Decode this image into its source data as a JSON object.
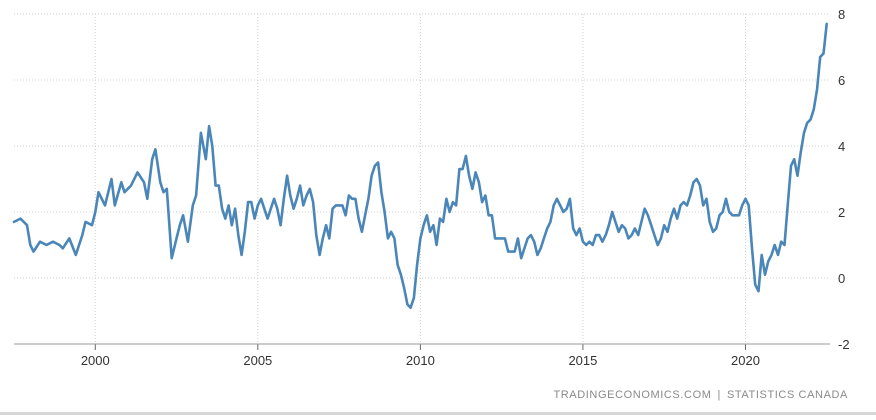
{
  "chart_data": {
    "type": "line",
    "title": "",
    "xlabel": "",
    "ylabel": "",
    "xlim": [
      1997.5,
      2022.6
    ],
    "ylim": [
      -2,
      8
    ],
    "x_ticks": [
      2000,
      2005,
      2010,
      2015,
      2020
    ],
    "y_ticks": [
      -2,
      0,
      2,
      4,
      6,
      8
    ],
    "grid": true,
    "legend": "none",
    "colors": {
      "line": "#4a86b8",
      "grid": "#d0d0d0"
    },
    "series": [
      {
        "points": [
          [
            1997.5,
            1.7
          ],
          [
            1997.7,
            1.8
          ],
          [
            1997.9,
            1.6
          ],
          [
            1998.0,
            1.0
          ],
          [
            1998.1,
            0.8
          ],
          [
            1998.3,
            1.1
          ],
          [
            1998.5,
            1.0
          ],
          [
            1998.7,
            1.1
          ],
          [
            1998.9,
            1.0
          ],
          [
            1999.0,
            0.9
          ],
          [
            1999.2,
            1.2
          ],
          [
            1999.4,
            0.7
          ],
          [
            1999.6,
            1.3
          ],
          [
            1999.7,
            1.7
          ],
          [
            1999.9,
            1.6
          ],
          [
            2000.0,
            2.0
          ],
          [
            2000.1,
            2.6
          ],
          [
            2000.3,
            2.2
          ],
          [
            2000.5,
            3.0
          ],
          [
            2000.6,
            2.2
          ],
          [
            2000.8,
            2.9
          ],
          [
            2000.9,
            2.6
          ],
          [
            2001.1,
            2.8
          ],
          [
            2001.3,
            3.2
          ],
          [
            2001.5,
            2.9
          ],
          [
            2001.6,
            2.4
          ],
          [
            2001.75,
            3.6
          ],
          [
            2001.85,
            3.9
          ],
          [
            2002.0,
            2.9
          ],
          [
            2002.1,
            2.6
          ],
          [
            2002.2,
            2.7
          ],
          [
            2002.35,
            0.6
          ],
          [
            2002.5,
            1.2
          ],
          [
            2002.6,
            1.6
          ],
          [
            2002.7,
            1.9
          ],
          [
            2002.85,
            1.1
          ],
          [
            2003.0,
            2.2
          ],
          [
            2003.1,
            2.5
          ],
          [
            2003.25,
            4.4
          ],
          [
            2003.4,
            3.6
          ],
          [
            2003.5,
            4.6
          ],
          [
            2003.6,
            4.0
          ],
          [
            2003.7,
            2.8
          ],
          [
            2003.8,
            2.8
          ],
          [
            2003.9,
            2.1
          ],
          [
            2004.0,
            1.8
          ],
          [
            2004.1,
            2.2
          ],
          [
            2004.2,
            1.6
          ],
          [
            2004.3,
            2.1
          ],
          [
            2004.4,
            1.3
          ],
          [
            2004.5,
            0.7
          ],
          [
            2004.6,
            1.4
          ],
          [
            2004.7,
            2.3
          ],
          [
            2004.8,
            2.3
          ],
          [
            2004.9,
            1.8
          ],
          [
            2005.0,
            2.2
          ],
          [
            2005.1,
            2.4
          ],
          [
            2005.2,
            2.1
          ],
          [
            2005.3,
            1.8
          ],
          [
            2005.4,
            2.1
          ],
          [
            2005.5,
            2.4
          ],
          [
            2005.6,
            2.1
          ],
          [
            2005.7,
            1.6
          ],
          [
            2005.8,
            2.4
          ],
          [
            2005.9,
            3.1
          ],
          [
            2006.0,
            2.5
          ],
          [
            2006.1,
            2.1
          ],
          [
            2006.2,
            2.4
          ],
          [
            2006.3,
            2.8
          ],
          [
            2006.4,
            2.2
          ],
          [
            2006.5,
            2.5
          ],
          [
            2006.6,
            2.7
          ],
          [
            2006.7,
            2.3
          ],
          [
            2006.8,
            1.3
          ],
          [
            2006.9,
            0.7
          ],
          [
            2007.0,
            1.2
          ],
          [
            2007.1,
            1.6
          ],
          [
            2007.2,
            1.2
          ],
          [
            2007.3,
            2.1
          ],
          [
            2007.4,
            2.2
          ],
          [
            2007.5,
            2.2
          ],
          [
            2007.6,
            2.2
          ],
          [
            2007.7,
            1.9
          ],
          [
            2007.8,
            2.5
          ],
          [
            2007.9,
            2.4
          ],
          [
            2008.0,
            2.4
          ],
          [
            2008.1,
            1.8
          ],
          [
            2008.2,
            1.4
          ],
          [
            2008.3,
            1.9
          ],
          [
            2008.4,
            2.4
          ],
          [
            2008.5,
            3.1
          ],
          [
            2008.6,
            3.4
          ],
          [
            2008.7,
            3.5
          ],
          [
            2008.8,
            2.6
          ],
          [
            2008.9,
            2.0
          ],
          [
            2009.0,
            1.2
          ],
          [
            2009.1,
            1.4
          ],
          [
            2009.2,
            1.2
          ],
          [
            2009.3,
            0.4
          ],
          [
            2009.4,
            0.1
          ],
          [
            2009.5,
            -0.3
          ],
          [
            2009.6,
            -0.8
          ],
          [
            2009.7,
            -0.9
          ],
          [
            2009.8,
            -0.6
          ],
          [
            2009.9,
            0.4
          ],
          [
            2010.0,
            1.2
          ],
          [
            2010.1,
            1.6
          ],
          [
            2010.2,
            1.9
          ],
          [
            2010.3,
            1.4
          ],
          [
            2010.4,
            1.6
          ],
          [
            2010.5,
            1.0
          ],
          [
            2010.6,
            1.8
          ],
          [
            2010.7,
            1.7
          ],
          [
            2010.8,
            2.4
          ],
          [
            2010.9,
            2.0
          ],
          [
            2011.0,
            2.3
          ],
          [
            2011.1,
            2.2
          ],
          [
            2011.2,
            3.3
          ],
          [
            2011.3,
            3.3
          ],
          [
            2011.4,
            3.7
          ],
          [
            2011.5,
            3.1
          ],
          [
            2011.6,
            2.7
          ],
          [
            2011.7,
            3.2
          ],
          [
            2011.8,
            2.9
          ],
          [
            2011.9,
            2.3
          ],
          [
            2012.0,
            2.5
          ],
          [
            2012.1,
            1.9
          ],
          [
            2012.2,
            1.9
          ],
          [
            2012.3,
            1.2
          ],
          [
            2012.4,
            1.2
          ],
          [
            2012.5,
            1.2
          ],
          [
            2012.6,
            1.2
          ],
          [
            2012.7,
            0.8
          ],
          [
            2012.8,
            0.8
          ],
          [
            2012.9,
            0.8
          ],
          [
            2013.0,
            1.2
          ],
          [
            2013.1,
            0.6
          ],
          [
            2013.2,
            0.9
          ],
          [
            2013.3,
            1.2
          ],
          [
            2013.4,
            1.3
          ],
          [
            2013.5,
            1.1
          ],
          [
            2013.6,
            0.7
          ],
          [
            2013.7,
            0.9
          ],
          [
            2013.8,
            1.2
          ],
          [
            2013.9,
            1.5
          ],
          [
            2014.0,
            1.7
          ],
          [
            2014.1,
            2.2
          ],
          [
            2014.2,
            2.4
          ],
          [
            2014.3,
            2.2
          ],
          [
            2014.4,
            2.0
          ],
          [
            2014.5,
            2.1
          ],
          [
            2014.6,
            2.4
          ],
          [
            2014.7,
            1.5
          ],
          [
            2014.8,
            1.3
          ],
          [
            2014.9,
            1.5
          ],
          [
            2015.0,
            1.1
          ],
          [
            2015.1,
            1.0
          ],
          [
            2015.2,
            1.1
          ],
          [
            2015.3,
            1.0
          ],
          [
            2015.4,
            1.3
          ],
          [
            2015.5,
            1.3
          ],
          [
            2015.6,
            1.1
          ],
          [
            2015.7,
            1.3
          ],
          [
            2015.8,
            1.6
          ],
          [
            2015.9,
            2.0
          ],
          [
            2016.0,
            1.7
          ],
          [
            2016.1,
            1.4
          ],
          [
            2016.2,
            1.6
          ],
          [
            2016.3,
            1.5
          ],
          [
            2016.4,
            1.2
          ],
          [
            2016.5,
            1.3
          ],
          [
            2016.6,
            1.5
          ],
          [
            2016.7,
            1.3
          ],
          [
            2016.8,
            1.7
          ],
          [
            2016.9,
            2.1
          ],
          [
            2017.0,
            1.9
          ],
          [
            2017.1,
            1.6
          ],
          [
            2017.2,
            1.3
          ],
          [
            2017.3,
            1.0
          ],
          [
            2017.4,
            1.2
          ],
          [
            2017.5,
            1.6
          ],
          [
            2017.6,
            1.4
          ],
          [
            2017.7,
            1.8
          ],
          [
            2017.8,
            2.1
          ],
          [
            2017.9,
            1.8
          ],
          [
            2018.0,
            2.2
          ],
          [
            2018.1,
            2.3
          ],
          [
            2018.2,
            2.2
          ],
          [
            2018.3,
            2.5
          ],
          [
            2018.4,
            2.9
          ],
          [
            2018.5,
            3.0
          ],
          [
            2018.6,
            2.8
          ],
          [
            2018.7,
            2.2
          ],
          [
            2018.8,
            2.4
          ],
          [
            2018.9,
            1.7
          ],
          [
            2019.0,
            1.4
          ],
          [
            2019.1,
            1.5
          ],
          [
            2019.2,
            1.9
          ],
          [
            2019.3,
            2.0
          ],
          [
            2019.4,
            2.4
          ],
          [
            2019.5,
            2.0
          ],
          [
            2019.6,
            1.9
          ],
          [
            2019.7,
            1.9
          ],
          [
            2019.8,
            1.9
          ],
          [
            2019.9,
            2.2
          ],
          [
            2020.0,
            2.4
          ],
          [
            2020.1,
            2.2
          ],
          [
            2020.2,
            0.9
          ],
          [
            2020.3,
            -0.2
          ],
          [
            2020.4,
            -0.4
          ],
          [
            2020.5,
            0.7
          ],
          [
            2020.6,
            0.1
          ],
          [
            2020.7,
            0.5
          ],
          [
            2020.8,
            0.7
          ],
          [
            2020.9,
            1.0
          ],
          [
            2021.0,
            0.7
          ],
          [
            2021.1,
            1.1
          ],
          [
            2021.2,
            1.0
          ],
          [
            2021.3,
            2.2
          ],
          [
            2021.4,
            3.4
          ],
          [
            2021.5,
            3.6
          ],
          [
            2021.6,
            3.1
          ],
          [
            2021.7,
            3.8
          ],
          [
            2021.8,
            4.4
          ],
          [
            2021.9,
            4.7
          ],
          [
            2022.0,
            4.8
          ],
          [
            2022.1,
            5.1
          ],
          [
            2022.2,
            5.7
          ],
          [
            2022.3,
            6.7
          ],
          [
            2022.4,
            6.8
          ],
          [
            2022.5,
            7.7
          ]
        ]
      }
    ]
  },
  "footer": {
    "source_site": "TRADINGECONOMICS.COM",
    "separator": "|",
    "source_org": "STATISTICS CANADA"
  }
}
